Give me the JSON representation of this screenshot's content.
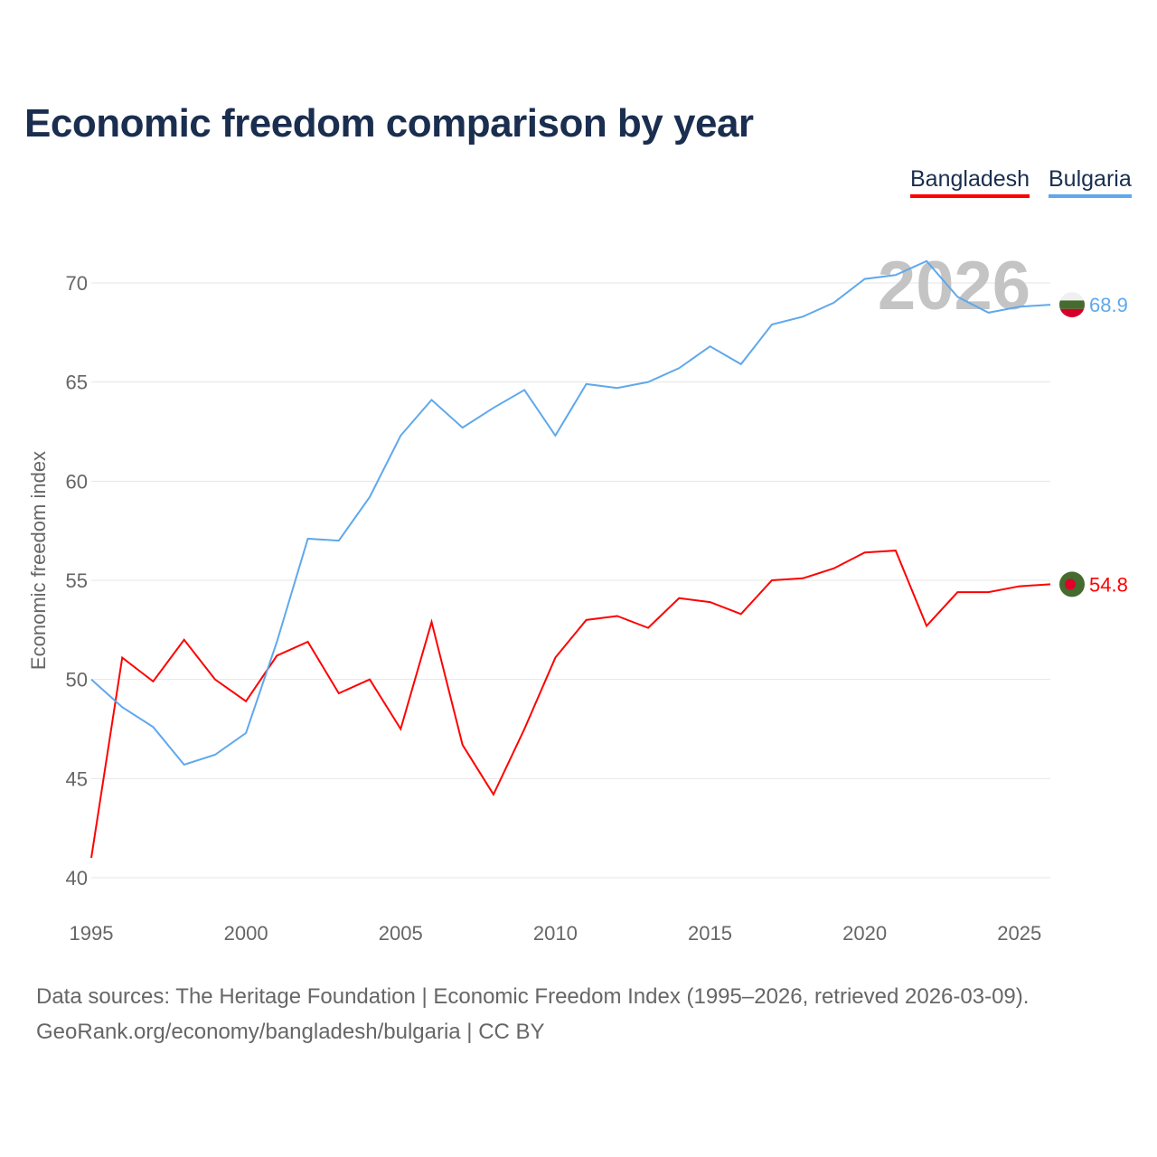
{
  "title": "Economic freedom comparison by year",
  "legend": [
    {
      "label": "Bangladesh",
      "color": "#ff0000"
    },
    {
      "label": "Bulgaria",
      "color": "#5fa8ec"
    }
  ],
  "watermark_year": "2026",
  "footer": {
    "line1": "Data sources: The Heritage Foundation | Economic Freedom Index (1995–2026, retrieved 2026-03-09).",
    "line2": "GeoRank.org/economy/bangladesh/bulgaria | CC BY"
  },
  "chart_data": {
    "type": "line",
    "title": "Economic freedom comparison by year",
    "xlabel": "",
    "ylabel": "Economic freedom index",
    "xlim": [
      1995,
      2026
    ],
    "ylim": [
      40,
      72
    ],
    "yticks": [
      40,
      45,
      50,
      55,
      60,
      65,
      70
    ],
    "xticks": [
      1995,
      2000,
      2005,
      2010,
      2015,
      2020,
      2025
    ],
    "grid": true,
    "legend_position": "top-right",
    "x": [
      1995,
      1996,
      1997,
      1998,
      1999,
      2000,
      2001,
      2002,
      2003,
      2004,
      2005,
      2006,
      2007,
      2008,
      2009,
      2010,
      2011,
      2012,
      2013,
      2014,
      2015,
      2016,
      2017,
      2018,
      2019,
      2020,
      2021,
      2022,
      2023,
      2024,
      2025,
      2026
    ],
    "series": [
      {
        "name": "Bangladesh",
        "color": "#ff0000",
        "end_label": "54.8",
        "values": [
          41.0,
          51.1,
          49.9,
          52.0,
          50.0,
          48.9,
          51.2,
          51.9,
          49.3,
          50.0,
          47.5,
          52.9,
          46.7,
          44.2,
          47.5,
          51.1,
          53.0,
          53.2,
          52.6,
          54.1,
          53.9,
          53.3,
          55.0,
          55.1,
          55.6,
          56.4,
          56.5,
          52.7,
          54.4,
          54.4,
          54.7,
          54.8
        ]
      },
      {
        "name": "Bulgaria",
        "color": "#5fa8ec",
        "end_label": "68.9",
        "values": [
          50.0,
          48.6,
          47.6,
          45.7,
          46.2,
          47.3,
          51.9,
          57.1,
          57.0,
          59.2,
          62.3,
          64.1,
          62.7,
          63.7,
          64.6,
          62.3,
          64.9,
          64.7,
          65.0,
          65.7,
          66.8,
          65.9,
          67.9,
          68.3,
          69.0,
          70.2,
          70.4,
          71.1,
          69.3,
          68.5,
          68.8,
          68.9
        ]
      }
    ]
  }
}
